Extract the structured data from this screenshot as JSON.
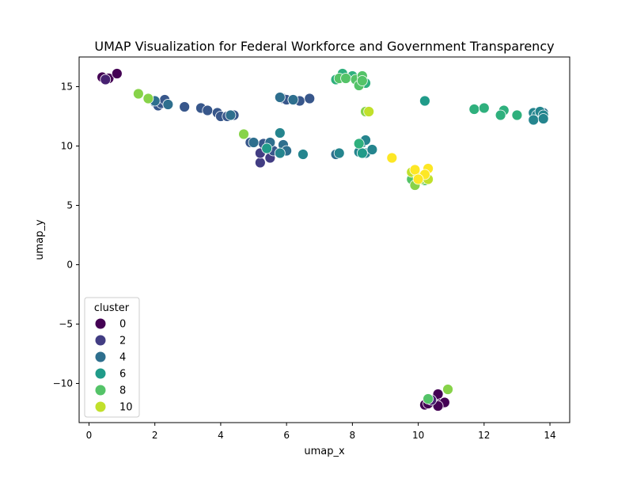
{
  "chart_data": {
    "type": "scatter",
    "title": "UMAP Visualization for Federal Workforce and Government Transparency",
    "xlabel": "umap_x",
    "ylabel": "umap_y",
    "xlim": [
      -0.3,
      14.6
    ],
    "ylim": [
      -13.3,
      17.5
    ],
    "xticks": [
      0,
      2,
      4,
      6,
      8,
      10,
      12,
      14
    ],
    "yticks": [
      -10,
      -5,
      0,
      5,
      10,
      15
    ],
    "legend": {
      "title": "cluster",
      "placement": "lower-left",
      "entries": [
        "0",
        "2",
        "4",
        "6",
        "8",
        "10"
      ]
    },
    "colormap": "viridis",
    "cluster_max": 11,
    "points": [
      {
        "x": 0.4,
        "y": 15.8,
        "c": 0
      },
      {
        "x": 0.5,
        "y": 15.6,
        "c": 0
      },
      {
        "x": 0.6,
        "y": 15.7,
        "c": 0
      },
      {
        "x": 0.85,
        "y": 16.1,
        "c": 0
      },
      {
        "x": 10.2,
        "y": -11.8,
        "c": 0
      },
      {
        "x": 10.4,
        "y": -11.6,
        "c": 0
      },
      {
        "x": 10.5,
        "y": -11.5,
        "c": 0
      },
      {
        "x": 10.6,
        "y": -10.9,
        "c": 0
      },
      {
        "x": 10.7,
        "y": -11.7,
        "c": 0
      },
      {
        "x": 10.8,
        "y": -11.6,
        "c": 0
      },
      {
        "x": 10.6,
        "y": -11.9,
        "c": 0
      },
      {
        "x": 10.3,
        "y": -11.7,
        "c": 0
      },
      {
        "x": 0.5,
        "y": 15.6,
        "c": 1
      },
      {
        "x": 10.4,
        "y": -11.4,
        "c": 1
      },
      {
        "x": 5.2,
        "y": 8.6,
        "c": 2
      },
      {
        "x": 5.2,
        "y": 9.4,
        "c": 2
      },
      {
        "x": 5.5,
        "y": 9.0,
        "c": 2
      },
      {
        "x": 2.0,
        "y": 13.7,
        "c": 3
      },
      {
        "x": 2.1,
        "y": 13.4,
        "c": 3
      },
      {
        "x": 2.2,
        "y": 13.6,
        "c": 3
      },
      {
        "x": 2.3,
        "y": 13.9,
        "c": 3
      },
      {
        "x": 2.4,
        "y": 13.5,
        "c": 3
      },
      {
        "x": 2.9,
        "y": 13.3,
        "c": 3
      },
      {
        "x": 3.4,
        "y": 13.2,
        "c": 3
      },
      {
        "x": 3.6,
        "y": 13.0,
        "c": 3
      },
      {
        "x": 3.9,
        "y": 12.8,
        "c": 3
      },
      {
        "x": 4.0,
        "y": 12.5,
        "c": 3
      },
      {
        "x": 4.2,
        "y": 12.5,
        "c": 3
      },
      {
        "x": 4.4,
        "y": 12.6,
        "c": 3
      },
      {
        "x": 5.8,
        "y": 14.1,
        "c": 3
      },
      {
        "x": 5.9,
        "y": 14.0,
        "c": 3
      },
      {
        "x": 6.0,
        "y": 13.9,
        "c": 3
      },
      {
        "x": 6.2,
        "y": 13.9,
        "c": 3
      },
      {
        "x": 6.4,
        "y": 13.8,
        "c": 3
      },
      {
        "x": 6.7,
        "y": 14.0,
        "c": 3
      },
      {
        "x": 4.9,
        "y": 10.3,
        "c": 3
      },
      {
        "x": 5.3,
        "y": 10.2,
        "c": 3
      },
      {
        "x": 5.5,
        "y": 10.0,
        "c": 3
      },
      {
        "x": 5.6,
        "y": 9.6,
        "c": 3
      },
      {
        "x": 2.0,
        "y": 13.8,
        "c": 4
      },
      {
        "x": 2.4,
        "y": 13.5,
        "c": 4
      },
      {
        "x": 4.3,
        "y": 12.6,
        "c": 4
      },
      {
        "x": 5.8,
        "y": 14.1,
        "c": 4
      },
      {
        "x": 6.2,
        "y": 13.9,
        "c": 4
      },
      {
        "x": 5.0,
        "y": 10.3,
        "c": 4
      },
      {
        "x": 5.5,
        "y": 10.3,
        "c": 4
      },
      {
        "x": 5.9,
        "y": 10.1,
        "c": 4
      },
      {
        "x": 6.0,
        "y": 9.6,
        "c": 4
      },
      {
        "x": 7.5,
        "y": 9.3,
        "c": 4
      },
      {
        "x": 13.8,
        "y": 12.8,
        "c": 4
      },
      {
        "x": 5.8,
        "y": 11.1,
        "c": 5
      },
      {
        "x": 5.8,
        "y": 9.4,
        "c": 5
      },
      {
        "x": 6.5,
        "y": 9.3,
        "c": 5
      },
      {
        "x": 7.6,
        "y": 9.4,
        "c": 5
      },
      {
        "x": 8.2,
        "y": 9.5,
        "c": 5
      },
      {
        "x": 8.3,
        "y": 10.3,
        "c": 5
      },
      {
        "x": 8.4,
        "y": 10.5,
        "c": 5
      },
      {
        "x": 8.4,
        "y": 9.4,
        "c": 5
      },
      {
        "x": 8.6,
        "y": 9.7,
        "c": 5
      },
      {
        "x": 13.5,
        "y": 12.8,
        "c": 5
      },
      {
        "x": 13.6,
        "y": 12.6,
        "c": 5
      },
      {
        "x": 13.7,
        "y": 12.9,
        "c": 5
      },
      {
        "x": 13.8,
        "y": 12.6,
        "c": 5
      },
      {
        "x": 13.5,
        "y": 12.2,
        "c": 5
      },
      {
        "x": 13.8,
        "y": 12.3,
        "c": 5
      },
      {
        "x": 5.4,
        "y": 9.8,
        "c": 6
      },
      {
        "x": 8.3,
        "y": 9.4,
        "c": 6
      },
      {
        "x": 10.2,
        "y": 13.8,
        "c": 6
      },
      {
        "x": 7.5,
        "y": 15.6,
        "c": 7
      },
      {
        "x": 7.7,
        "y": 16.1,
        "c": 7
      },
      {
        "x": 8.0,
        "y": 15.9,
        "c": 7
      },
      {
        "x": 8.2,
        "y": 15.4,
        "c": 7
      },
      {
        "x": 8.4,
        "y": 15.3,
        "c": 7
      },
      {
        "x": 8.2,
        "y": 10.2,
        "c": 7
      },
      {
        "x": 11.7,
        "y": 13.1,
        "c": 7
      },
      {
        "x": 12.0,
        "y": 13.2,
        "c": 7
      },
      {
        "x": 12.6,
        "y": 13.0,
        "c": 7
      },
      {
        "x": 12.5,
        "y": 12.6,
        "c": 7
      },
      {
        "x": 13.0,
        "y": 12.6,
        "c": 7
      },
      {
        "x": 7.6,
        "y": 15.7,
        "c": 8
      },
      {
        "x": 7.8,
        "y": 15.7,
        "c": 8
      },
      {
        "x": 8.1,
        "y": 15.6,
        "c": 8
      },
      {
        "x": 8.2,
        "y": 15.1,
        "c": 8
      },
      {
        "x": 8.3,
        "y": 15.9,
        "c": 8
      },
      {
        "x": 8.3,
        "y": 15.5,
        "c": 8
      },
      {
        "x": 9.8,
        "y": 7.2,
        "c": 8
      },
      {
        "x": 10.2,
        "y": 7.1,
        "c": 8
      },
      {
        "x": 10.3,
        "y": -11.3,
        "c": 8
      },
      {
        "x": 1.5,
        "y": 14.4,
        "c": 9
      },
      {
        "x": 1.8,
        "y": 14.0,
        "c": 9
      },
      {
        "x": 4.7,
        "y": 11.0,
        "c": 9
      },
      {
        "x": 8.4,
        "y": 12.9,
        "c": 9
      },
      {
        "x": 9.9,
        "y": 6.7,
        "c": 9
      },
      {
        "x": 10.1,
        "y": 7.2,
        "c": 9
      },
      {
        "x": 10.9,
        "y": -10.5,
        "c": 9
      },
      {
        "x": 8.5,
        "y": 12.9,
        "c": 10
      },
      {
        "x": 9.8,
        "y": 7.8,
        "c": 10
      },
      {
        "x": 10.0,
        "y": 7.5,
        "c": 10
      },
      {
        "x": 10.3,
        "y": 7.2,
        "c": 10
      },
      {
        "x": 9.2,
        "y": 9.0,
        "c": 11
      },
      {
        "x": 9.9,
        "y": 8.0,
        "c": 11
      },
      {
        "x": 10.3,
        "y": 8.1,
        "c": 11
      },
      {
        "x": 10.2,
        "y": 7.6,
        "c": 11
      },
      {
        "x": 10.0,
        "y": 7.2,
        "c": 11
      }
    ]
  }
}
